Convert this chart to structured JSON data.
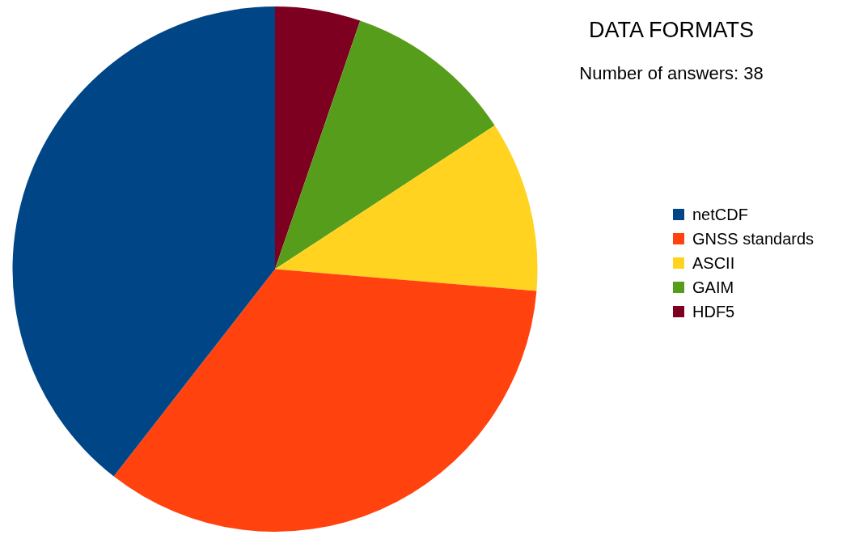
{
  "chart_data": {
    "type": "pie",
    "title": "DATA FORMATS",
    "subtitle": "Number of answers: 38",
    "categories": [
      "netCDF",
      "GNSS standards",
      "ASCII",
      "GAIM",
      "HDF5"
    ],
    "values": [
      39.47,
      34.21,
      10.53,
      10.53,
      5.26
    ],
    "colors": [
      "#004586",
      "#ff420e",
      "#ffd320",
      "#579d1c",
      "#7e0021"
    ],
    "legend": "right"
  }
}
